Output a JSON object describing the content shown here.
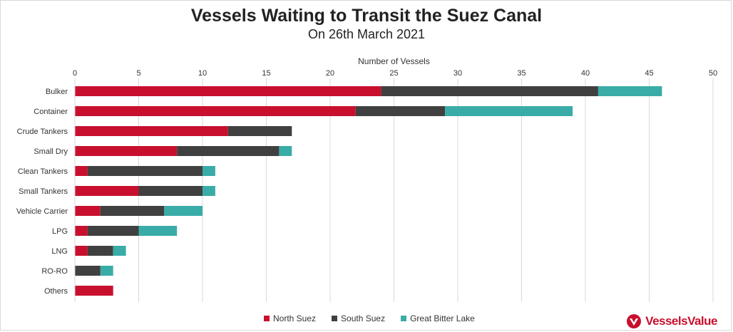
{
  "chart_data": {
    "type": "bar",
    "orientation": "horizontal",
    "stacked": true,
    "title": "Vessels Waiting to Transit the Suez Canal",
    "subtitle": "On 26th March 2021",
    "xlabel": "Number of Vessels",
    "xlim": [
      0,
      50
    ],
    "xticks": [
      0,
      5,
      10,
      15,
      20,
      25,
      30,
      35,
      40,
      45,
      50
    ],
    "grid": true,
    "legend_position": "bottom",
    "categories": [
      "Bulker",
      "Container",
      "Crude Tankers",
      "Small Dry",
      "Clean Tankers",
      "Small Tankers",
      "Vehicle Carrier",
      "LPG",
      "LNG",
      "RO-RO",
      "Others"
    ],
    "series": [
      {
        "name": "North Suez",
        "color": "#c8102e",
        "values": [
          24,
          22,
          12,
          8,
          1,
          5,
          2,
          1,
          1,
          0,
          3
        ]
      },
      {
        "name": "South Suez",
        "color": "#404040",
        "values": [
          17,
          7,
          5,
          8,
          9,
          5,
          5,
          4,
          2,
          2,
          0
        ]
      },
      {
        "name": "Great Bitter Lake",
        "color": "#3aaca7",
        "values": [
          5,
          10,
          0,
          1,
          1,
          1,
          3,
          3,
          1,
          1,
          0
        ]
      }
    ]
  },
  "brand": {
    "name": "VesselsValue",
    "logo_icon": "vesselsvalue-logo-icon",
    "color": "#c8102e"
  }
}
